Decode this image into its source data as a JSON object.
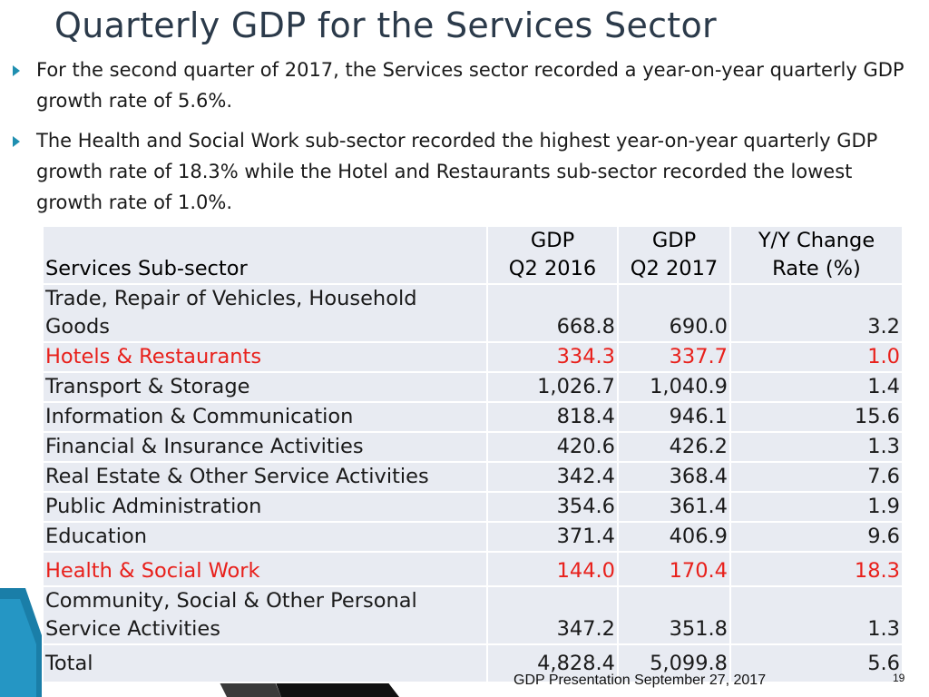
{
  "slide": {
    "title": "Quarterly GDP for the Services Sector",
    "bullets": [
      "For the second quarter of 2017, the Services sector recorded a year-on-year quarterly GDP growth rate of 5.6%.",
      "The Health and Social Work sub-sector recorded the highest year-on-year quarterly GDP growth rate of 18.3% while the Hotel and Restaurants sub-sector recorded the lowest growth rate of 1.0%."
    ],
    "footer": "GDP Presentation September 27, 2017",
    "page_number": "19",
    "highlight_color": "#e8201b",
    "accent_color": "#1f8fb0"
  },
  "table": {
    "headers": {
      "sector": "Services Sub-sector",
      "gdp2016_line1": "GDP",
      "gdp2016_line2": "Q2 2016",
      "gdp2017_line1": "GDP",
      "gdp2017_line2": "Q2 2017",
      "change_line1": "Y/Y Change",
      "change_line2": "Rate (%)"
    },
    "rows": [
      {
        "sector": "Trade, Repair of Vehicles, Household Goods",
        "gdp2016": "668.8",
        "gdp2017": "690.0",
        "change": "3.2"
      },
      {
        "sector": "Hotels & Restaurants",
        "gdp2016": "334.3",
        "gdp2017": "337.7",
        "change": "1.0"
      },
      {
        "sector": "Transport & Storage",
        "gdp2016": "1,026.7",
        "gdp2017": "1,040.9",
        "change": "1.4"
      },
      {
        "sector": "Information & Communication",
        "gdp2016": "818.4",
        "gdp2017": "946.1",
        "change": "15.6"
      },
      {
        "sector": "Financial & Insurance Activities",
        "gdp2016": "420.6",
        "gdp2017": "426.2",
        "change": "1.3"
      },
      {
        "sector": "Real Estate & Other Service Activities",
        "gdp2016": "342.4",
        "gdp2017": "368.4",
        "change": "7.6"
      },
      {
        "sector": "Public Administration",
        "gdp2016": "354.6",
        "gdp2017": "361.4",
        "change": "1.9"
      },
      {
        "sector": "Education",
        "gdp2016": "371.4",
        "gdp2017": "406.9",
        "change": "9.6"
      },
      {
        "sector": "Health & Social Work",
        "gdp2016": "144.0",
        "gdp2017": "170.4",
        "change": "18.3"
      },
      {
        "sector": "Community, Social & Other Personal Service Activities",
        "gdp2016": "347.2",
        "gdp2017": "351.8",
        "change": "1.3"
      }
    ],
    "total": {
      "label": "Total",
      "gdp2016": "4,828.4",
      "gdp2017": "5,099.8",
      "change": "5.6"
    }
  }
}
